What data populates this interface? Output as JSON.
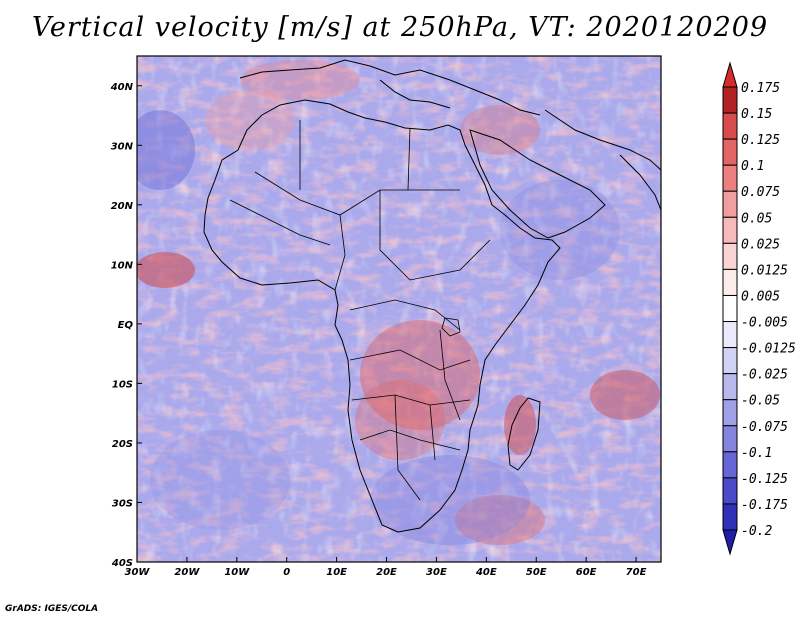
{
  "title": "Vertical velocity [m/s] at 250hPa, VT: 2020120209",
  "credit": "GrADS: IGES/COLA",
  "map": {
    "variable": "Vertical velocity",
    "units": "m/s",
    "level": "250hPa",
    "valid_time": "2020120209",
    "lon_range": [
      -30,
      75
    ],
    "lat_range": [
      -40,
      45
    ],
    "x_tick_labels": [
      {
        "lon": -30,
        "label": "30W"
      },
      {
        "lon": -20,
        "label": "20W"
      },
      {
        "lon": -10,
        "label": "10W"
      },
      {
        "lon": 0,
        "label": "0"
      },
      {
        "lon": 10,
        "label": "10E"
      },
      {
        "lon": 20,
        "label": "20E"
      },
      {
        "lon": 30,
        "label": "30E"
      },
      {
        "lon": 40,
        "label": "40E"
      },
      {
        "lon": 50,
        "label": "50E"
      },
      {
        "lon": 60,
        "label": "60E"
      },
      {
        "lon": 70,
        "label": "70E"
      }
    ],
    "y_tick_labels": [
      {
        "lat": 40,
        "label": "40N"
      },
      {
        "lat": 30,
        "label": "30N"
      },
      {
        "lat": 20,
        "label": "20N"
      },
      {
        "lat": 10,
        "label": "10N"
      },
      {
        "lat": 0,
        "label": "EQ"
      },
      {
        "lat": -10,
        "label": "10S"
      },
      {
        "lat": -20,
        "label": "20S"
      },
      {
        "lat": -30,
        "label": "30S"
      },
      {
        "lat": -40,
        "label": "40S"
      }
    ]
  },
  "colorbar": {
    "labels": [
      "0.175",
      "0.15",
      "0.125",
      "0.1",
      "0.075",
      "0.05",
      "0.025",
      "0.0125",
      "0.005",
      "-0.005",
      "-0.0125",
      "-0.025",
      "-0.05",
      "-0.075",
      "-0.1",
      "-0.125",
      "-0.175",
      "-0.2"
    ],
    "colors": [
      "#d42c2c",
      "#b22222",
      "#d64b4b",
      "#e36464",
      "#ec7f7f",
      "#f19e9e",
      "#f6baba",
      "#f9d4d4",
      "#fdecec",
      "#ffffff",
      "#eaeafa",
      "#d2d2f4",
      "#b9b9ee",
      "#a0a0e8",
      "#8585e0",
      "#6666d6",
      "#4a4acb",
      "#3030b8",
      "#1e1eaa"
    ]
  }
}
